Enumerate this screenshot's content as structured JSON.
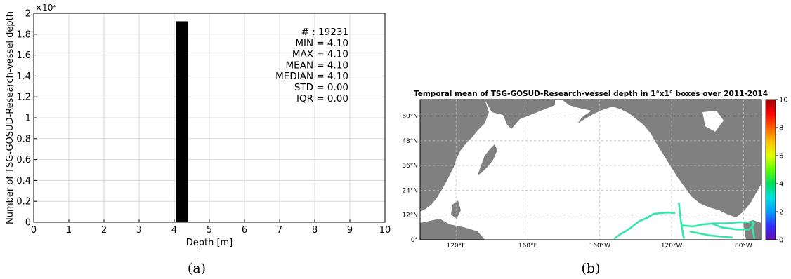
{
  "chart_data": [
    {
      "type": "bar",
      "panel_label": "(a)",
      "xlabel": "Depth [m]",
      "ylabel": "Number of TSG-GOSUD-Research-vessel depth",
      "y_multiplier": "×10⁴",
      "xlim": [
        0,
        10
      ],
      "ylim": [
        0,
        2
      ],
      "x_ticks": [
        "0",
        "1",
        "2",
        "3",
        "4",
        "5",
        "6",
        "7",
        "8",
        "9",
        "10"
      ],
      "y_ticks": [
        "0",
        "0.2",
        "0.4",
        "0.6",
        "0.8",
        "1",
        "1.2",
        "1.4",
        "1.6",
        "1.8",
        "2"
      ],
      "grid": true,
      "bars": [
        {
          "x0": 4.05,
          "x1": 4.4,
          "value": 1.9231
        }
      ],
      "bar_color": "#000000",
      "stats": [
        "# : 19231",
        "MIN = 4.10",
        "MAX =  4.10",
        "MEAN = 4.10",
        "MEDIAN = 4.10",
        "STD = 0.00",
        "IQR = 0.00"
      ]
    },
    {
      "type": "heatmap",
      "panel_label": "(b)",
      "title": "Temporal mean of TSG-GOSUD-Research-vessel depth in 1°x1° boxes over 2011-2014",
      "lon_range": [
        100,
        290
      ],
      "lat_range": [
        0,
        68
      ],
      "x_ticks": [
        {
          "lon": 120,
          "label": "120°E"
        },
        {
          "lon": 160,
          "label": "160°E"
        },
        {
          "lon": 200,
          "label": "160°W"
        },
        {
          "lon": 240,
          "label": "120°W"
        },
        {
          "lon": 280,
          "label": "80°W"
        }
      ],
      "y_ticks": [
        {
          "lat": 0,
          "label": "0°"
        },
        {
          "lat": 12,
          "label": "12°N"
        },
        {
          "lat": 24,
          "label": "24°N"
        },
        {
          "lat": 36,
          "label": "36°N"
        },
        {
          "lat": 48,
          "label": "48°N"
        },
        {
          "lat": 60,
          "label": "60°N"
        }
      ],
      "land_color": "#808080",
      "track_color": "#33e8a6",
      "colorbar_ticks": [
        "0",
        "2",
        "4",
        "6",
        "8",
        "10"
      ],
      "colorbar_range": [
        0,
        10
      ],
      "colormap": [
        "#6a0dad",
        "#3030ff",
        "#00a0ff",
        "#00e0e0",
        "#00e060",
        "#60ff00",
        "#e0ff00",
        "#ffc000",
        "#ff6000",
        "#ff0000",
        "#a00000"
      ],
      "tracks": [
        [
          [
            208,
            0.5
          ],
          [
            212,
            3
          ],
          [
            216,
            5
          ],
          [
            219,
            7
          ],
          [
            222,
            9
          ],
          [
            226,
            10.5
          ],
          [
            230,
            12.5
          ],
          [
            234,
            13
          ],
          [
            238,
            13.2
          ],
          [
            242,
            13
          ]
        ],
        [
          [
            244,
            18
          ],
          [
            244.5,
            14
          ],
          [
            245,
            10
          ],
          [
            245.5,
            7
          ],
          [
            246,
            4.5
          ],
          [
            246.5,
            2
          ],
          [
            247,
            0.5
          ]
        ],
        [
          [
            245,
            7
          ],
          [
            252,
            6.5
          ],
          [
            258,
            7.5
          ],
          [
            264,
            8
          ],
          [
            270,
            8
          ],
          [
            278,
            8.5
          ],
          [
            284,
            8.5
          ]
        ],
        [
          [
            250,
            4
          ],
          [
            256,
            3
          ],
          [
            262,
            2
          ],
          [
            268,
            1.5
          ],
          [
            274,
            1
          ]
        ],
        [
          [
            262,
            8
          ],
          [
            268,
            6
          ],
          [
            276,
            5
          ],
          [
            283,
            5
          ],
          [
            285,
            6.5
          ],
          [
            286,
            8.5
          ]
        ],
        [
          [
            285,
            9
          ],
          [
            285,
            6
          ],
          [
            285.5,
            3
          ],
          [
            286,
            0.5
          ]
        ]
      ]
    }
  ]
}
